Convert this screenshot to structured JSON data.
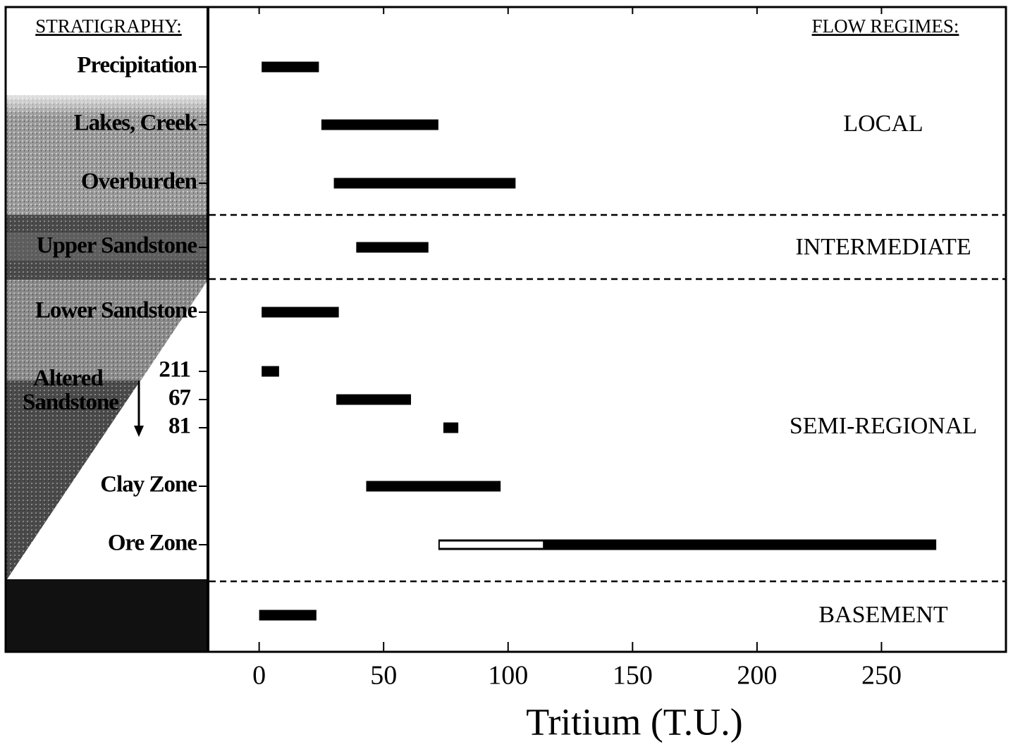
{
  "chart_data": {
    "type": "range-bar",
    "strata_title": "STRATIGRAPHY:",
    "regimes_title": "FLOW REGIMES:",
    "x_label": "Tritium (T.U.)",
    "xlim": [
      -20,
      300
    ],
    "xticks": [
      0,
      50,
      100,
      150,
      200,
      250
    ],
    "color": "#000000",
    "open_color": "#ffffff",
    "rows": [
      {
        "label": "Precipitation",
        "low": 1,
        "high": 24
      },
      {
        "label": "Lakes, Creek",
        "low": 25,
        "high": 72
      },
      {
        "label": "Overburden",
        "low": 30,
        "high": 103
      },
      {
        "label": "Upper Sandstone",
        "low": 39,
        "high": 68
      },
      {
        "label": "Lower Sandstone",
        "low": 1,
        "high": 32
      },
      {
        "label": "211",
        "low": 1,
        "high": 8
      },
      {
        "label": "67",
        "low": 31,
        "high": 61
      },
      {
        "label": "81",
        "low": 74,
        "high": 80
      },
      {
        "label": "Clay Zone",
        "low": 43,
        "high": 97
      },
      {
        "label": "Ore Zone",
        "low": 72,
        "high": 272,
        "open_low": 72,
        "open_high": 114
      },
      {
        "label": null,
        "low": 0,
        "high": 23
      }
    ],
    "regimes": [
      "LOCAL",
      "INTERMEDIATE",
      "SEMI-REGIONAL",
      "BASEMENT"
    ],
    "strata_note": [
      "Altered",
      "Sandstone"
    ]
  }
}
